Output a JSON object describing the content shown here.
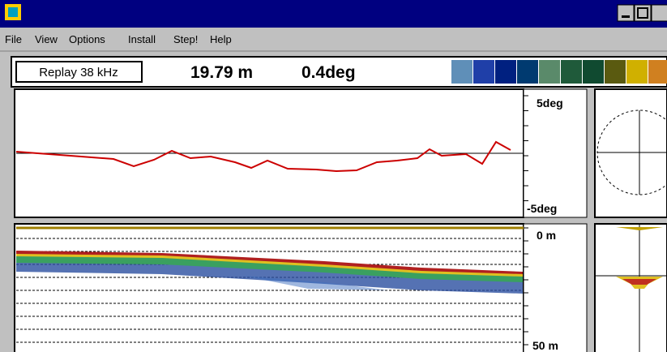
{
  "menu": [
    "File",
    "View",
    "Options",
    "Install",
    "Step!",
    "Help"
  ],
  "toolbar": {
    "mode": "Replay 38 kHz",
    "depth": "19.79 m",
    "angle": "0.4deg"
  },
  "tilt_panel": {
    "top_label": "5deg",
    "bottom_label": "-5deg"
  },
  "echo_panel": {
    "top_label": "0 m",
    "bottom_label": "50 m"
  }
}
